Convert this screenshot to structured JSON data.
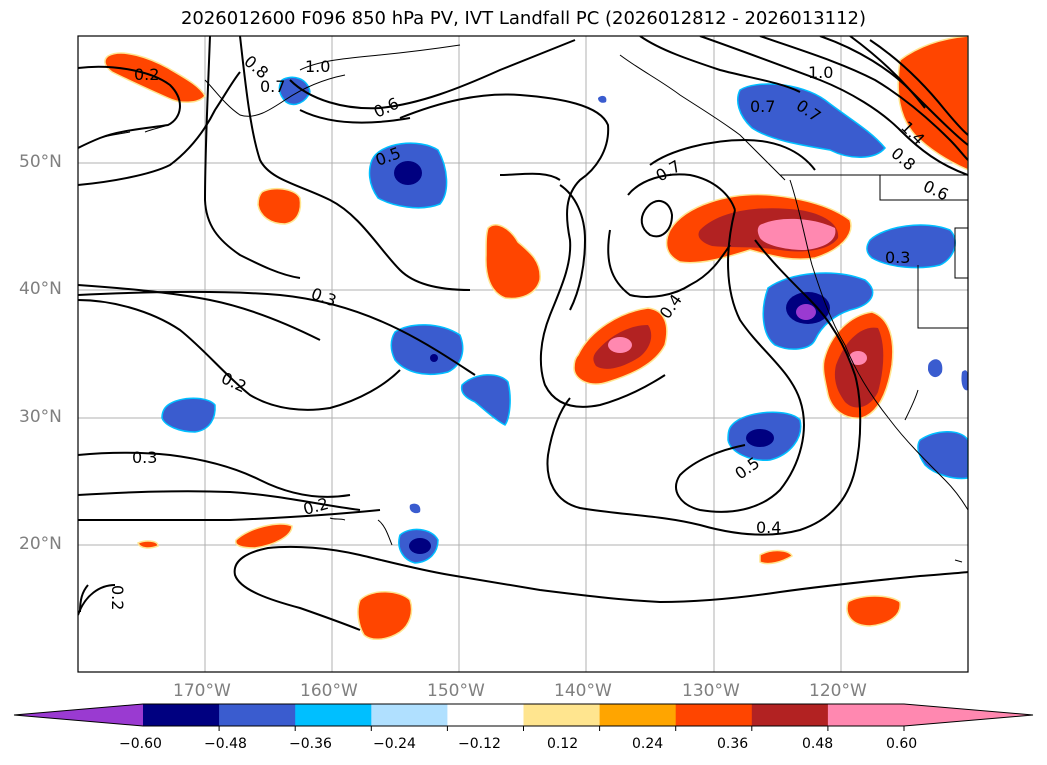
{
  "title": "2026012600 F096 850 hPa PV, IVT Landfall PC (2026012812 - 2026013112)",
  "map": {
    "lat_labels": [
      "50°N",
      "40°N",
      "30°N",
      "20°N"
    ],
    "lon_labels": [
      "170°W",
      "160°W",
      "150°W",
      "140°W",
      "130°W",
      "120°W"
    ],
    "contour_labels": [
      "0.2",
      "0.8",
      "0.7",
      "1.0",
      "0.6",
      "0.5",
      "0.3",
      "0.2",
      "0.3",
      "0.2",
      "0.2",
      "0.7",
      "0.4",
      "0.5",
      "0.4",
      "0.7",
      "0.7",
      "1.0",
      "1.4",
      "0.8",
      "0.6",
      "0.3"
    ]
  },
  "colorbar": {
    "tick_labels": [
      "−0.60",
      "−0.48",
      "−0.36",
      "−0.24",
      "−0.12",
      "0.12",
      "0.24",
      "0.36",
      "0.48",
      "0.60"
    ],
    "colors": [
      "#9a3ad1",
      "#000080",
      "#3a5ccf",
      "#00bfff",
      "#b0e0ff",
      "#ffffff",
      "#ffe58f",
      "#ffa500",
      "#ff4500",
      "#b22222",
      "#ff88b0",
      "#ff88b0"
    ]
  }
}
